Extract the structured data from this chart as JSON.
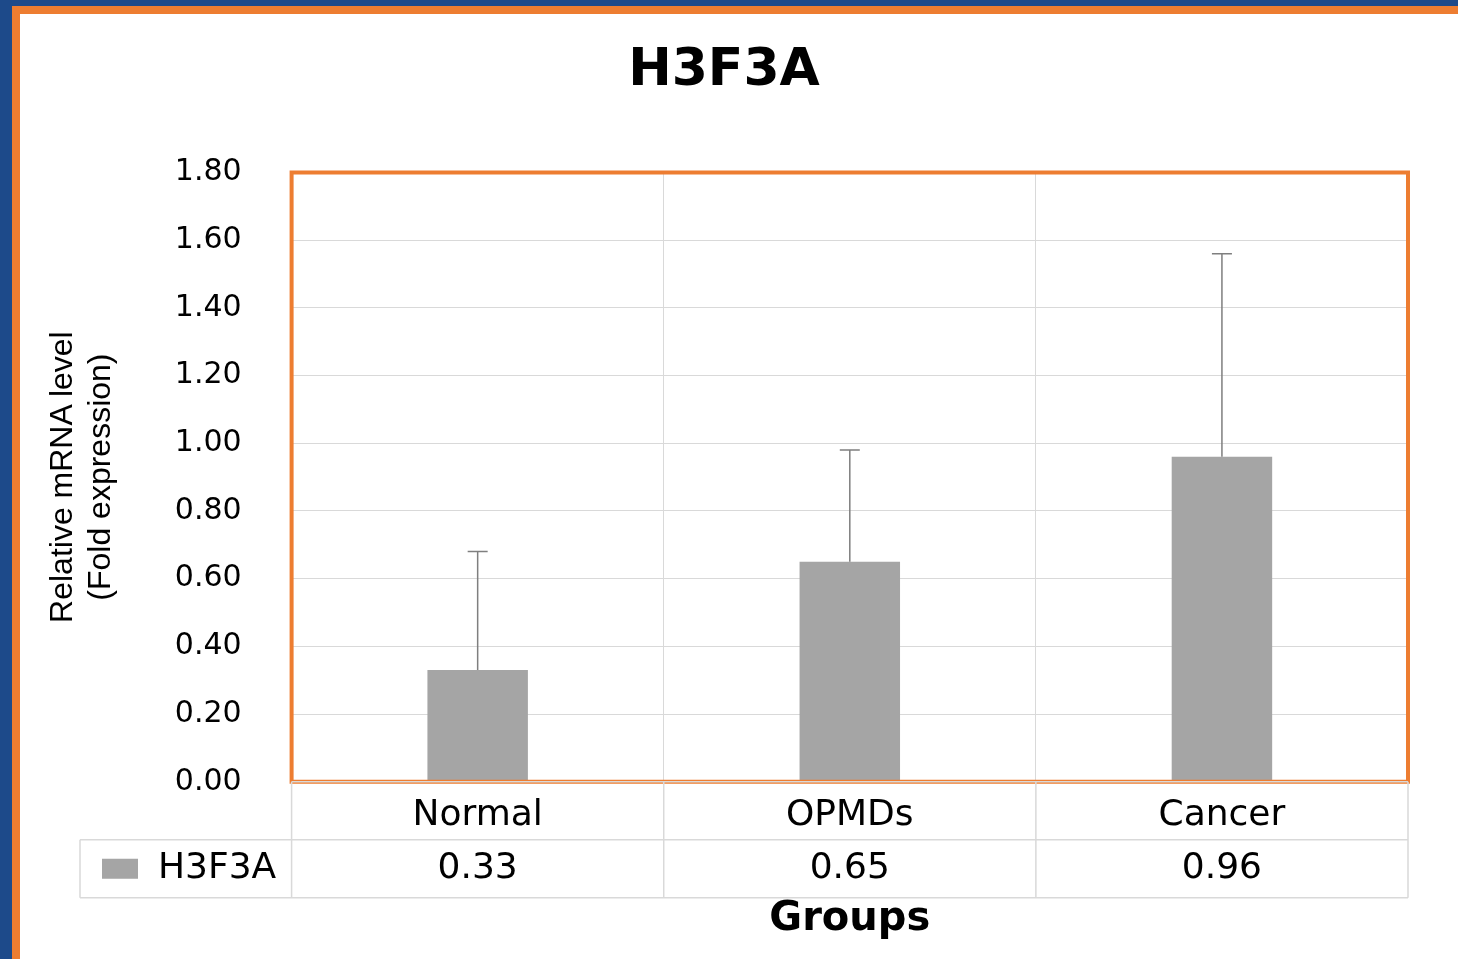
{
  "chart_data": {
    "type": "bar",
    "title": "H3F3A",
    "xlabel": "Groups",
    "ylabel": "Relative mRNA level\n(Fold expression)",
    "categories": [
      "Normal",
      "OPMDs",
      "Cancer"
    ],
    "series": [
      {
        "name": "H3F3A",
        "color": "#a5a5a5",
        "values": [
          0.33,
          0.65,
          0.96
        ],
        "errors": [
          [
            0.33,
            0.68
          ],
          [
            0.65,
            0.98
          ],
          [
            0.96,
            1.56
          ]
        ]
      }
    ],
    "ylim": [
      0,
      1.8
    ],
    "yticks": [
      {
        "value": 0,
        "label": "0.00"
      },
      {
        "value": 0.2,
        "label": "0.20"
      },
      {
        "value": 0.4,
        "label": "0.40"
      },
      {
        "value": 0.6,
        "label": "0.60"
      },
      {
        "value": 0.8,
        "label": "0.80"
      },
      {
        "value": 1,
        "label": "1.00"
      },
      {
        "value": 1.2,
        "label": "1.20"
      },
      {
        "value": 1.4,
        "label": "1.40"
      },
      {
        "value": 1.6,
        "label": "1.60"
      },
      {
        "value": 1.8,
        "label": "1.80"
      }
    ],
    "grid": true,
    "legend": "bottom",
    "data_labels": true
  }
}
